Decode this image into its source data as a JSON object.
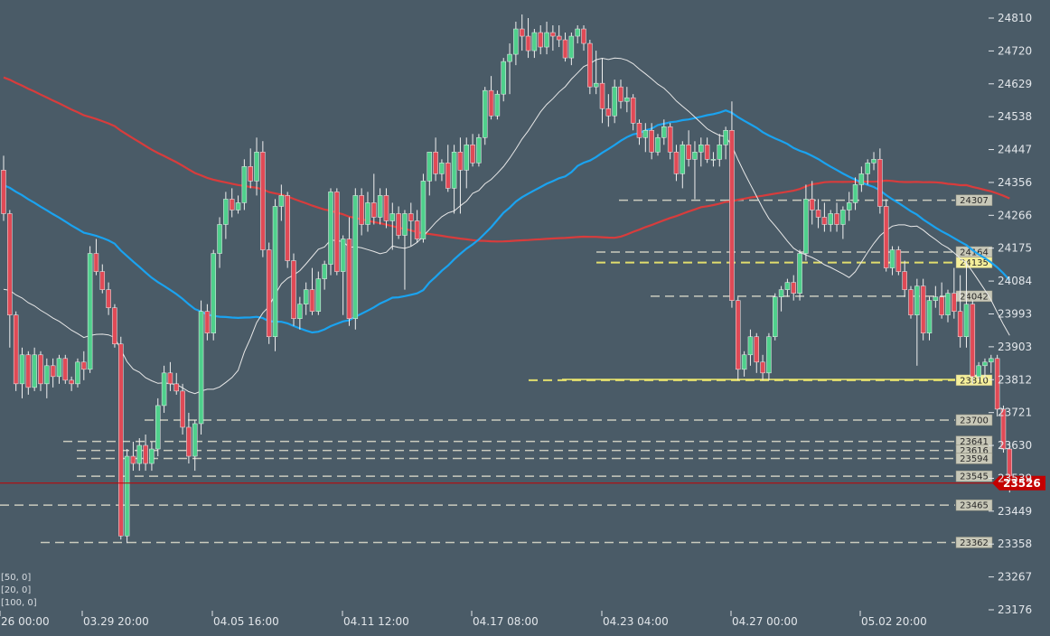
{
  "chart_data": {
    "type": "candlestick",
    "title": "",
    "ylim": [
      23176,
      24830
    ],
    "y_ticks": [
      "24810",
      "24720",
      "24629",
      "24538",
      "24447",
      "24356",
      "24266",
      "24175",
      "24084",
      "23993",
      "23903",
      "23812",
      "23721",
      "23630",
      "23539",
      "23449",
      "23358",
      "23267",
      "23176"
    ],
    "x_ticks": [
      "26 00:00",
      "03.29 20:00",
      "04.05 16:00",
      "04.11 12:00",
      "04.17 08:00",
      "04.23 04:00",
      "04.27 00:00",
      "05.02 20:00"
    ],
    "legend": [
      "[50, 0]",
      "[20, 0]",
      "[100, 0]"
    ],
    "last_price": "23526",
    "levels": [
      {
        "label": "24307",
        "value": 24307,
        "style": "dashed",
        "color": "#d8d8c8",
        "highlight": false
      },
      {
        "label": "24164",
        "value": 24164,
        "style": "dashed",
        "color": "#d8d8c8",
        "highlight": false
      },
      {
        "label": "24135",
        "value": 24135,
        "style": "dashed",
        "color": "#f2ec6e",
        "highlight": true
      },
      {
        "label": "24042",
        "value": 24042,
        "style": "dashed",
        "color": "#d8d8c8",
        "highlight": false
      },
      {
        "label": "23810",
        "value": 23810,
        "style": "dashed",
        "color": "#f2ec6e",
        "highlight": true
      },
      {
        "label": "23700",
        "value": 23700,
        "style": "dashed",
        "color": "#d8d8c8",
        "highlight": false
      },
      {
        "label": "23641",
        "value": 23641,
        "style": "dashed",
        "color": "#d8d8c8",
        "highlight": false
      },
      {
        "label": "23616",
        "value": 23616,
        "style": "dashed",
        "color": "#d8d8c8",
        "highlight": false
      },
      {
        "label": "23594",
        "value": 23594,
        "style": "dashed",
        "color": "#d8d8c8",
        "highlight": false
      },
      {
        "label": "23545",
        "value": 23545,
        "style": "dashed",
        "color": "#d8d8c8",
        "highlight": false
      },
      {
        "label": "23465",
        "value": 23465,
        "style": "dashed",
        "color": "#d8d8c8",
        "highlight": false
      },
      {
        "label": "23362",
        "value": 23362,
        "style": "dashed",
        "color": "#d8d8c8",
        "highlight": false
      }
    ],
    "colors": {
      "background": "#4a5b67",
      "up": "#4fd08c",
      "down": "#e04a56",
      "ma50": "#1aa3f0",
      "ma20": "#e8e8e8",
      "ma100": "#d83c3c",
      "last_price": "#c40000"
    },
    "candles": [
      [
        24390,
        24430,
        24250,
        24270
      ],
      [
        24270,
        24280,
        23900,
        23990
      ],
      [
        23990,
        24000,
        23780,
        23800
      ],
      [
        23800,
        23900,
        23760,
        23880
      ],
      [
        23880,
        23890,
        23770,
        23790
      ],
      [
        23790,
        23900,
        23780,
        23880
      ],
      [
        23880,
        23890,
        23780,
        23800
      ],
      [
        23800,
        23870,
        23760,
        23850
      ],
      [
        23850,
        23870,
        23790,
        23820
      ],
      [
        23820,
        23880,
        23800,
        23870
      ],
      [
        23870,
        23880,
        23800,
        23810
      ],
      [
        23810,
        23820,
        23780,
        23800
      ],
      [
        23800,
        23870,
        23790,
        23860
      ],
      [
        23860,
        23890,
        23810,
        23840
      ],
      [
        23840,
        24180,
        23830,
        24160
      ],
      [
        24160,
        24200,
        24100,
        24110
      ],
      [
        24110,
        24130,
        24050,
        24060
      ],
      [
        24060,
        24080,
        23990,
        24010
      ],
      [
        24010,
        24020,
        23900,
        23910
      ],
      [
        23910,
        23930,
        23370,
        23380
      ],
      [
        23380,
        23620,
        23360,
        23600
      ],
      [
        23600,
        23640,
        23560,
        23580
      ],
      [
        23580,
        23650,
        23560,
        23630
      ],
      [
        23630,
        23660,
        23560,
        23580
      ],
      [
        23580,
        23640,
        23560,
        23620
      ],
      [
        23620,
        23760,
        23600,
        23740
      ],
      [
        23740,
        23850,
        23720,
        23830
      ],
      [
        23830,
        23860,
        23780,
        23800
      ],
      [
        23800,
        23830,
        23770,
        23780
      ],
      [
        23780,
        23800,
        23660,
        23680
      ],
      [
        23680,
        23720,
        23580,
        23600
      ],
      [
        23600,
        23700,
        23560,
        23690
      ],
      [
        23690,
        24030,
        23660,
        24000
      ],
      [
        24000,
        24020,
        23920,
        23940
      ],
      [
        23940,
        24170,
        23920,
        24160
      ],
      [
        24160,
        24260,
        24120,
        24240
      ],
      [
        24240,
        24330,
        24200,
        24310
      ],
      [
        24310,
        24340,
        24260,
        24280
      ],
      [
        24280,
        24320,
        24270,
        24300
      ],
      [
        24300,
        24420,
        24280,
        24400
      ],
      [
        24400,
        24450,
        24340,
        24360
      ],
      [
        24360,
        24480,
        24320,
        24440
      ],
      [
        24440,
        24470,
        24150,
        24170
      ],
      [
        24170,
        24190,
        23910,
        23930
      ],
      [
        23930,
        24310,
        23890,
        24290
      ],
      [
        24290,
        24350,
        24250,
        24320
      ],
      [
        24320,
        24330,
        24120,
        24140
      ],
      [
        24140,
        24160,
        23960,
        23980
      ],
      [
        23980,
        24040,
        23950,
        24020
      ],
      [
        24020,
        24080,
        23990,
        24060
      ],
      [
        24060,
        24120,
        23990,
        24000
      ],
      [
        24000,
        24110,
        23990,
        24090
      ],
      [
        24090,
        24140,
        24060,
        24130
      ],
      [
        24130,
        24340,
        24100,
        24330
      ],
      [
        24330,
        24340,
        24100,
        24110
      ],
      [
        24110,
        24210,
        23990,
        24200
      ],
      [
        24200,
        24260,
        23960,
        23980
      ],
      [
        23980,
        24340,
        23950,
        24320
      ],
      [
        24320,
        24340,
        24210,
        24240
      ],
      [
        24240,
        24330,
        24220,
        24300
      ],
      [
        24300,
        24380,
        24240,
        24260
      ],
      [
        24260,
        24340,
        24240,
        24320
      ],
      [
        24320,
        24340,
        24230,
        24250
      ],
      [
        24250,
        24300,
        24170,
        24270
      ],
      [
        24270,
        24290,
        24200,
        24210
      ],
      [
        24210,
        24280,
        24060,
        24270
      ],
      [
        24270,
        24300,
        24180,
        24250
      ],
      [
        24250,
        24280,
        24190,
        24200
      ],
      [
        24200,
        24380,
        24190,
        24360
      ],
      [
        24360,
        24440,
        24320,
        24440
      ],
      [
        24440,
        24480,
        24360,
        24380
      ],
      [
        24380,
        24420,
        24360,
        24410
      ],
      [
        24410,
        24460,
        24330,
        24340
      ],
      [
        24340,
        24460,
        24270,
        24440
      ],
      [
        24440,
        24480,
        24270,
        24390
      ],
      [
        24390,
        24480,
        24340,
        24460
      ],
      [
        24460,
        24490,
        24400,
        24410
      ],
      [
        24410,
        24490,
        24400,
        24480
      ],
      [
        24480,
        24620,
        24460,
        24610
      ],
      [
        24610,
        24650,
        24530,
        24540
      ],
      [
        24540,
        24610,
        24530,
        24600
      ],
      [
        24600,
        24700,
        24580,
        24690
      ],
      [
        24690,
        24740,
        24600,
        24710
      ],
      [
        24710,
        24800,
        24680,
        24780
      ],
      [
        24780,
        24820,
        24720,
        24760
      ],
      [
        24760,
        24810,
        24700,
        24720
      ],
      [
        24720,
        24780,
        24700,
        24770
      ],
      [
        24770,
        24790,
        24710,
        24730
      ],
      [
        24730,
        24800,
        24710,
        24770
      ],
      [
        24770,
        24790,
        24720,
        24760
      ],
      [
        24760,
        24790,
        24730,
        24750
      ],
      [
        24750,
        24770,
        24690,
        24700
      ],
      [
        24700,
        24770,
        24680,
        24760
      ],
      [
        24760,
        24790,
        24740,
        24780
      ],
      [
        24780,
        24790,
        24720,
        24740
      ],
      [
        24740,
        24750,
        24600,
        24620
      ],
      [
        24620,
        24720,
        24600,
        24630
      ],
      [
        24630,
        24700,
        24520,
        24560
      ],
      [
        24560,
        24600,
        24510,
        24540
      ],
      [
        24540,
        24640,
        24520,
        24620
      ],
      [
        24620,
        24640,
        24560,
        24580
      ],
      [
        24580,
        24620,
        24550,
        24590
      ],
      [
        24590,
        24600,
        24500,
        24520
      ],
      [
        24520,
        24530,
        24460,
        24480
      ],
      [
        24480,
        24520,
        24440,
        24500
      ],
      [
        24500,
        24520,
        24420,
        24440
      ],
      [
        24440,
        24490,
        24430,
        24480
      ],
      [
        24480,
        24530,
        24460,
        24510
      ],
      [
        24510,
        24520,
        24420,
        24440
      ],
      [
        24440,
        24460,
        24360,
        24380
      ],
      [
        24380,
        24470,
        24340,
        24460
      ],
      [
        24460,
        24500,
        24400,
        24420
      ],
      [
        24420,
        24470,
        24310,
        24440
      ],
      [
        24440,
        24480,
        24400,
        24460
      ],
      [
        24460,
        24480,
        24410,
        24420
      ],
      [
        24420,
        24440,
        24400,
        24420
      ],
      [
        24420,
        24490,
        24400,
        24460
      ],
      [
        24460,
        24510,
        24420,
        24500
      ],
      [
        24500,
        24580,
        24010,
        24030
      ],
      [
        24030,
        24040,
        23810,
        23840
      ],
      [
        23840,
        23890,
        23820,
        23880
      ],
      [
        23880,
        23950,
        23850,
        23930
      ],
      [
        23930,
        23940,
        23830,
        23860
      ],
      [
        23860,
        23880,
        23810,
        23830
      ],
      [
        23830,
        23940,
        23810,
        23930
      ],
      [
        23930,
        24050,
        23920,
        24040
      ],
      [
        24040,
        24070,
        24000,
        24060
      ],
      [
        24060,
        24090,
        24040,
        24080
      ],
      [
        24080,
        24100,
        24030,
        24050
      ],
      [
        24050,
        24170,
        24030,
        24160
      ],
      [
        24160,
        24350,
        24140,
        24310
      ],
      [
        24310,
        24360,
        24240,
        24280
      ],
      [
        24280,
        24310,
        24230,
        24260
      ],
      [
        24260,
        24300,
        24220,
        24240
      ],
      [
        24240,
        24280,
        24220,
        24270
      ],
      [
        24270,
        24300,
        24220,
        24240
      ],
      [
        24240,
        24290,
        24200,
        24280
      ],
      [
        24280,
        24330,
        24250,
        24300
      ],
      [
        24300,
        24370,
        24280,
        24350
      ],
      [
        24350,
        24400,
        24330,
        24380
      ],
      [
        24380,
        24420,
        24350,
        24410
      ],
      [
        24410,
        24440,
        24390,
        24420
      ],
      [
        24420,
        24450,
        24270,
        24290
      ],
      [
        24290,
        24310,
        24110,
        24120
      ],
      [
        24120,
        24180,
        24100,
        24170
      ],
      [
        24170,
        24180,
        24100,
        24110
      ],
      [
        24110,
        24140,
        24040,
        24060
      ],
      [
        24060,
        24070,
        23980,
        23990
      ],
      [
        23990,
        24090,
        23850,
        24070
      ],
      [
        24070,
        24090,
        23920,
        23940
      ],
      [
        23940,
        24040,
        23920,
        24030
      ],
      [
        24030,
        24070,
        24010,
        24040
      ],
      [
        24040,
        24080,
        23980,
        23990
      ],
      [
        23990,
        24060,
        23970,
        24050
      ],
      [
        24050,
        24120,
        23980,
        24000
      ],
      [
        24000,
        24100,
        23900,
        23930
      ],
      [
        23930,
        24140,
        23900,
        24020
      ],
      [
        24020,
        24030,
        23800,
        23820
      ],
      [
        23820,
        23860,
        23810,
        23850
      ],
      [
        23850,
        23870,
        23810,
        23860
      ],
      [
        23860,
        23880,
        23830,
        23870
      ],
      [
        23870,
        23880,
        23710,
        23730
      ],
      [
        23730,
        23740,
        23610,
        23620
      ],
      [
        23620,
        23640,
        23500,
        23526
      ]
    ]
  }
}
